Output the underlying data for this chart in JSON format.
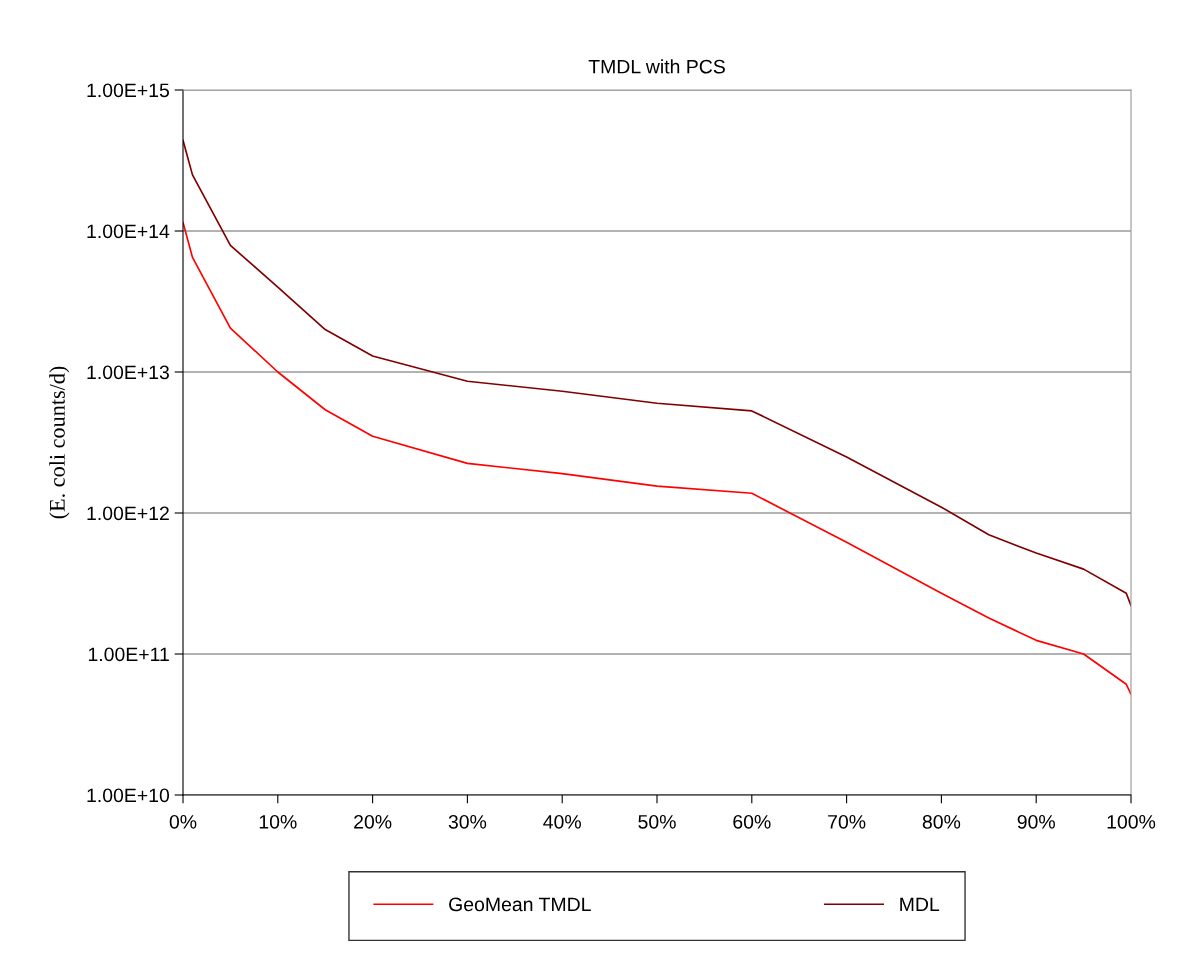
{
  "chart_data": {
    "type": "line",
    "title": "TMDL with PCS",
    "ylabel": "(E. coli counts/d)",
    "x": [
      0,
      1,
      5,
      10,
      15,
      20,
      30,
      40,
      50,
      60,
      70,
      80,
      85,
      90,
      95,
      99.5,
      100
    ],
    "series": [
      {
        "name": "GeoMean TMDL",
        "color": "#ff0000",
        "values": [
          115000000000000.0,
          65000000000000.0,
          20500000000000.0,
          10000000000000.0,
          5400000000000.0,
          3500000000000.0,
          2250000000000.0,
          1900000000000.0,
          1550000000000.0,
          1380000000000.0,
          620000000000.0,
          270000000000.0,
          180000000000.0,
          125000000000.0,
          100000000000.0,
          61000000000.0,
          52000000000.0
        ]
      },
      {
        "name": "MDL",
        "color": "#800000",
        "values": [
          440000000000000.0,
          250000000000000.0,
          79000000000000.0,
          40000000000000.0,
          20000000000000.0,
          13000000000000.0,
          8600000000000.0,
          7300000000000.0,
          6000000000000.0,
          5300000000000.0,
          2500000000000.0,
          1100000000000.0,
          700000000000.0,
          520000000000.0,
          400000000000.0,
          270000000000.0,
          220000000000.0
        ]
      }
    ],
    "log": true,
    "ylim": [
      10000000000.0,
      1000000000000000.0
    ],
    "yticks": [
      {
        "value": 10000000000.0,
        "label": "1.00E+10"
      },
      {
        "value": 100000000000.0,
        "label": "1.00E+11"
      },
      {
        "value": 1000000000000.0,
        "label": "1.00E+12"
      },
      {
        "value": 10000000000000.0,
        "label": "1.00E+13"
      },
      {
        "value": 100000000000000.0,
        "label": "1.00E+14"
      },
      {
        "value": 1000000000000000.0,
        "label": "1.00E+15"
      }
    ],
    "xlim": [
      0,
      100
    ],
    "xticks": [
      {
        "value": 0,
        "label": "0%"
      },
      {
        "value": 10,
        "label": "10%"
      },
      {
        "value": 20,
        "label": "20%"
      },
      {
        "value": 30,
        "label": "30%"
      },
      {
        "value": 40,
        "label": "40%"
      },
      {
        "value": 50,
        "label": "50%"
      },
      {
        "value": 60,
        "label": "60%"
      },
      {
        "value": 70,
        "label": "70%"
      },
      {
        "value": 80,
        "label": "80%"
      },
      {
        "value": 90,
        "label": "90%"
      },
      {
        "value": 100,
        "label": "100%"
      }
    ],
    "grid": "y",
    "legend": "bottom",
    "marker": "none",
    "line_style": "solid"
  }
}
